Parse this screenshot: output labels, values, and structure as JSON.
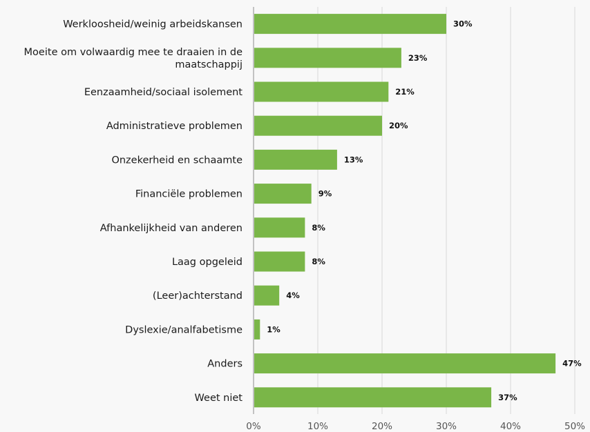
{
  "chart_data": {
    "type": "bar",
    "orientation": "horizontal",
    "categories": [
      "Werkloosheid/weinig arbeidskansen",
      "Moeite om volwaardig mee te draaien in de maatschappij",
      "Eenzaamheid/sociaal isolement",
      "Administratieve problemen",
      "Onzekerheid en schaamte",
      "Financiële problemen",
      "Afhankelijkheid van anderen",
      "Laag opgeleid",
      "(Leer)achterstand",
      "Dyslexie/analfabetisme",
      "Anders",
      "Weet niet"
    ],
    "values": [
      30,
      23,
      21,
      20,
      13,
      9,
      8,
      8,
      4,
      1,
      47,
      37
    ],
    "value_labels": [
      "30%",
      "23%",
      "21%",
      "20%",
      "13%",
      "9%",
      "8%",
      "8%",
      "4%",
      "1%",
      "47%",
      "37%"
    ],
    "xlim": [
      0,
      50
    ],
    "x_ticks": [
      0,
      10,
      20,
      30,
      40,
      50
    ],
    "x_tick_labels": [
      "0%",
      "10%",
      "20%",
      "30%",
      "40%",
      "50%"
    ],
    "grid": true,
    "bar_color": "#7ab648",
    "title": "",
    "xlabel": "",
    "ylabel": ""
  }
}
